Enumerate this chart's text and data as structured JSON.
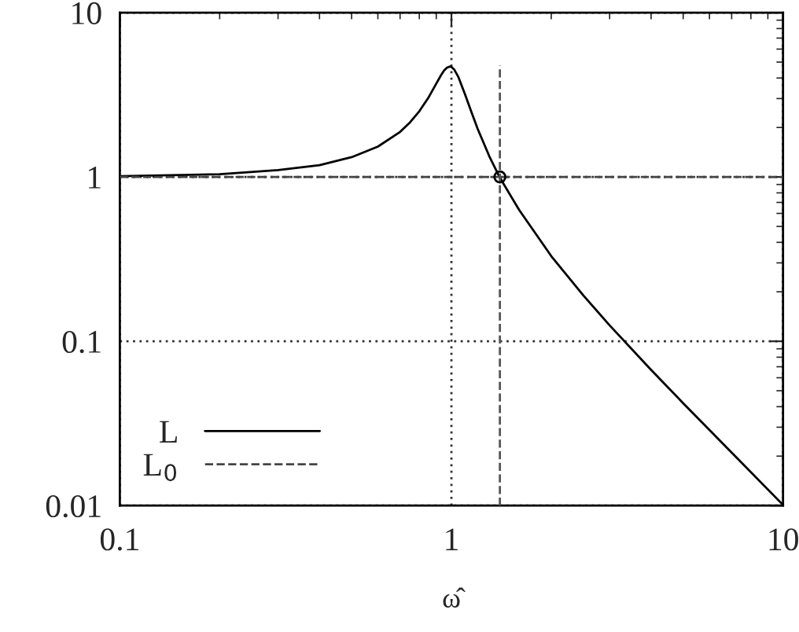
{
  "chart_data": {
    "type": "line",
    "xlabel": "ω̂",
    "log": "xy",
    "grid": true,
    "legend": "bottom left",
    "xlim": [
      0.1,
      10
    ],
    "ylim": [
      0.01,
      10
    ],
    "xticks": [
      0.1,
      1,
      10
    ],
    "yticks": [
      0.01,
      0.1,
      1,
      10
    ],
    "series": [
      {
        "name": "L",
        "color": "#000000",
        "line_style": "solid",
        "x": [
          0.1,
          0.2,
          0.3,
          0.4,
          0.5,
          0.6,
          0.7,
          0.75,
          0.8,
          0.85,
          0.9,
          0.93,
          0.95,
          0.97,
          0.99,
          1.0,
          1.02,
          1.05,
          1.1,
          1.15,
          1.2,
          1.3,
          1.4,
          1.6,
          2,
          2.5,
          3,
          4,
          5,
          7,
          10
        ],
        "values": [
          1.01,
          1.04,
          1.1,
          1.18,
          1.32,
          1.53,
          1.88,
          2.15,
          2.51,
          3.01,
          3.7,
          4.16,
          4.44,
          4.63,
          4.7,
          4.67,
          4.5,
          4.05,
          3.17,
          2.47,
          1.96,
          1.34,
          0.99,
          0.63,
          0.33,
          0.19,
          0.125,
          0.067,
          0.042,
          0.021,
          0.0101
        ]
      },
      {
        "name": "L$_{0}$",
        "color": "#444444",
        "line_style": "dashed",
        "x": [
          0.1,
          10
        ],
        "values": [
          1,
          1
        ]
      },
      {
        "color": "#555555",
        "line_style": "dashed",
        "x": [
          1.4,
          1.4
        ],
        "values": [
          0.01,
          4.77
        ]
      },
      {
        "type": "scatter",
        "color": "#000000",
        "marker": "circle",
        "x": [
          1.4
        ],
        "values": [
          1
        ]
      }
    ]
  }
}
